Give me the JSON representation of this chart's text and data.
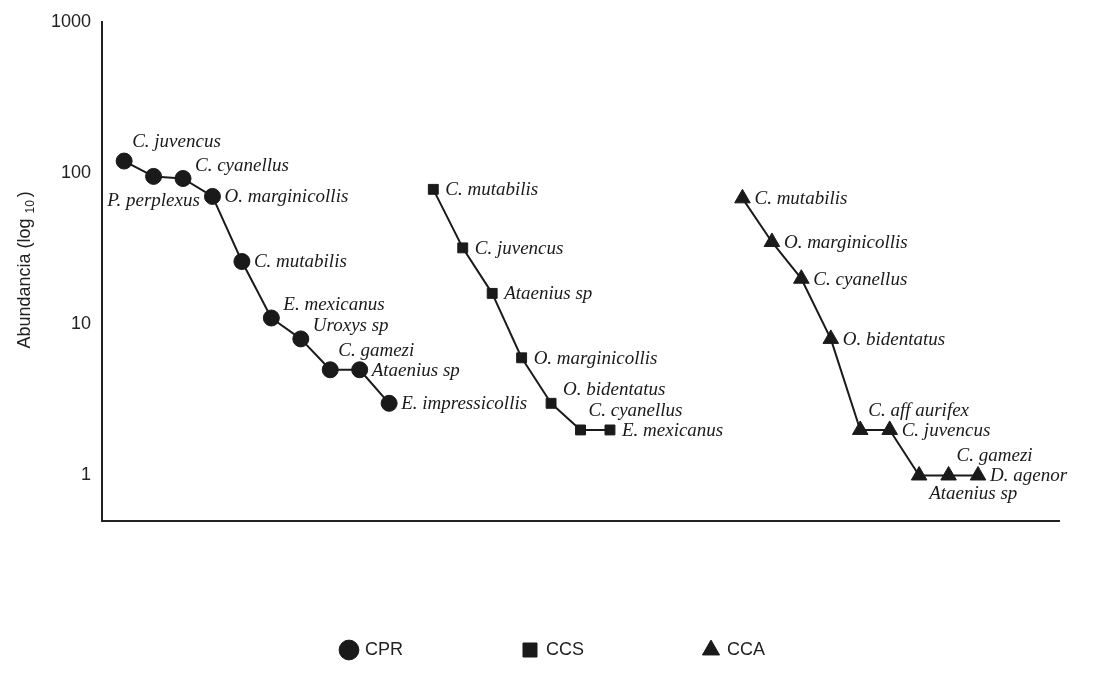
{
  "chart_data": {
    "type": "line",
    "ylabel": "Abundancia (log $_{10}$)",
    "log": "y",
    "ylim": [
      0.5,
      1000
    ],
    "yticks": [
      1,
      10,
      100,
      1000
    ],
    "grid": false,
    "legend": "bottom",
    "tick_labels": "y",
    "line_style": "solid",
    "categories": [
      null,
      null,
      null,
      null,
      null,
      null,
      null,
      null,
      null,
      null,
      null,
      null,
      null,
      null,
      null,
      null,
      null,
      null,
      null,
      null,
      null,
      null,
      null,
      null,
      null,
      null,
      null,
      null,
      null,
      null,
      null,
      null,
      null,
      null,
      null,
      null,
      null,
      null,
      null,
      null,
      null,
      null,
      null,
      null,
      null,
      null,
      null,
      null,
      null,
      null,
      null,
      null,
      null,
      null,
      null,
      null,
      null,
      null,
      null,
      null,
      null,
      null,
      null,
      null,
      null
    ],
    "series": [
      {
        "name": "CPR",
        "color": "#1a1a1a",
        "marker": "circle",
        "values": [
          null,
          120,
          null,
          95,
          null,
          92,
          null,
          70,
          null,
          26,
          null,
          11,
          null,
          8,
          null,
          5,
          null,
          5,
          null,
          3,
          null,
          null,
          null,
          null,
          null,
          null,
          null,
          null,
          null,
          null,
          null,
          null,
          null,
          null,
          null,
          null,
          null,
          null,
          null,
          null,
          null,
          null,
          null,
          null,
          null,
          null,
          null,
          null,
          null,
          null,
          null,
          null,
          null,
          null,
          null,
          null,
          null,
          null,
          null,
          null,
          null,
          null,
          null,
          null,
          null
        ],
        "value_labels": [
          null,
          "C. juvencus",
          null,
          "P. perplexus",
          null,
          "C. cyanellus",
          null,
          "O. marginicollis",
          null,
          "C. mutabilis",
          null,
          "E. mexicanus",
          null,
          "Uroxys sp",
          null,
          "C. gamezi",
          null,
          "Ataenius sp",
          null,
          "E. impressicollis",
          null,
          null,
          null,
          null,
          null,
          null,
          null,
          null,
          null,
          null,
          null,
          null,
          null,
          null,
          null,
          null,
          null,
          null,
          null,
          null,
          null,
          null,
          null,
          null,
          null,
          null,
          null,
          null,
          null,
          null,
          null,
          null,
          null,
          null,
          null,
          null,
          null,
          null,
          null,
          null,
          null,
          null,
          null,
          null,
          null
        ]
      },
      {
        "name": "CCS",
        "color": "#1a1a1a",
        "marker": "square",
        "values": [
          null,
          null,
          null,
          null,
          null,
          null,
          null,
          null,
          null,
          null,
          null,
          null,
          null,
          null,
          null,
          null,
          null,
          null,
          null,
          null,
          null,
          null,
          78,
          null,
          32,
          null,
          16,
          null,
          6,
          null,
          3,
          null,
          2,
          null,
          2,
          null,
          null,
          null,
          null,
          null,
          null,
          null,
          null,
          null,
          null,
          null,
          null,
          null,
          null,
          null,
          null,
          null,
          null,
          null,
          null,
          null,
          null,
          null,
          null,
          null,
          null,
          null,
          null,
          null,
          null
        ],
        "value_labels": [
          null,
          null,
          null,
          null,
          null,
          null,
          null,
          null,
          null,
          null,
          null,
          null,
          null,
          null,
          null,
          null,
          null,
          null,
          null,
          null,
          null,
          null,
          "C. mutabilis",
          null,
          "C. juvencus",
          null,
          "Ataenius sp",
          null,
          "O. marginicollis",
          null,
          "O. bidentatus",
          null,
          "C. cyanellus",
          null,
          "E. mexicanus",
          null,
          null,
          null,
          null,
          null,
          null,
          null,
          null,
          null,
          null,
          null,
          null,
          null,
          null,
          null,
          null,
          null,
          null,
          null,
          null,
          null,
          null,
          null,
          null,
          null,
          null,
          null,
          null,
          null,
          null
        ]
      },
      {
        "name": "CCA",
        "color": "#1a1a1a",
        "marker": "triangle",
        "values": [
          null,
          null,
          null,
          null,
          null,
          null,
          null,
          null,
          null,
          null,
          null,
          null,
          null,
          null,
          null,
          null,
          null,
          null,
          null,
          null,
          null,
          null,
          null,
          null,
          null,
          null,
          null,
          null,
          null,
          null,
          null,
          null,
          null,
          null,
          null,
          null,
          null,
          null,
          null,
          null,
          null,
          null,
          null,
          68,
          null,
          35,
          null,
          20,
          null,
          8,
          null,
          2,
          null,
          2,
          null,
          1,
          null,
          1,
          null,
          1,
          null,
          null,
          null,
          null,
          null
        ],
        "value_labels": [
          null,
          null,
          null,
          null,
          null,
          null,
          null,
          null,
          null,
          null,
          null,
          null,
          null,
          null,
          null,
          null,
          null,
          null,
          null,
          null,
          null,
          null,
          null,
          null,
          null,
          null,
          null,
          null,
          null,
          null,
          null,
          null,
          null,
          null,
          null,
          null,
          null,
          null,
          null,
          null,
          null,
          null,
          null,
          "C. mutabilis",
          null,
          "O. marginicollis",
          null,
          "C. cyanellus",
          null,
          "O. bidentatus",
          null,
          "C. aff aurifex",
          null,
          "C. juvencus",
          null,
          "Ataenius sp",
          null,
          "C. gamezi",
          null,
          "D. agenor",
          null,
          null,
          null,
          null,
          null
        ]
      }
    ]
  }
}
